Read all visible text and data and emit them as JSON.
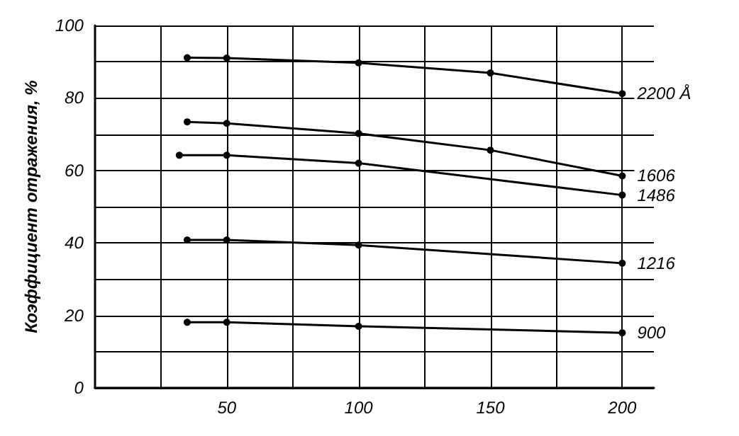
{
  "chart_data": {
    "type": "line",
    "ylabel": "Коэффициент отражения, %",
    "xlim": [
      0,
      212
    ],
    "ylim": [
      0,
      100
    ],
    "xticks": [
      {
        "value": 25,
        "label": null
      },
      50,
      {
        "value": 75,
        "label": null
      },
      100,
      {
        "value": 125,
        "label": null
      },
      150,
      {
        "value": 175,
        "label": null
      },
      200
    ],
    "yticks": [
      0,
      {
        "value": 10,
        "label": null
      },
      20,
      {
        "value": 30,
        "label": null
      },
      40,
      {
        "value": 50,
        "label": null
      },
      60,
      {
        "value": 70,
        "label": null
      },
      80,
      {
        "value": 90,
        "label": null
      },
      100
    ],
    "grid": true,
    "marker": "circle",
    "line_style": "solid",
    "legend": false,
    "series": [
      {
        "name": "2200 Å",
        "color": "#000000",
        "x": [
          35,
          50,
          100,
          150,
          200
        ],
        "values": [
          91.1,
          91,
          89.7,
          86.9,
          81.2
        ]
      },
      {
        "name": "1606",
        "color": "#000000",
        "x": [
          35,
          50,
          100,
          150,
          200
        ],
        "values": [
          73.4,
          73,
          70.2,
          65.6,
          58.5
        ]
      },
      {
        "name": "1486",
        "color": "#000000",
        "x": [
          32,
          50,
          100,
          200
        ],
        "values": [
          64.2,
          64.2,
          62,
          53.2
        ]
      },
      {
        "name": "1216",
        "color": "#000000",
        "x": [
          35,
          50,
          100,
          200
        ],
        "values": [
          40.8,
          40.8,
          39.4,
          34.4
        ]
      },
      {
        "name": "900",
        "color": "#000000",
        "x": [
          35,
          50,
          100,
          200
        ],
        "values": [
          18.1,
          18.1,
          17,
          15.2
        ]
      }
    ]
  }
}
